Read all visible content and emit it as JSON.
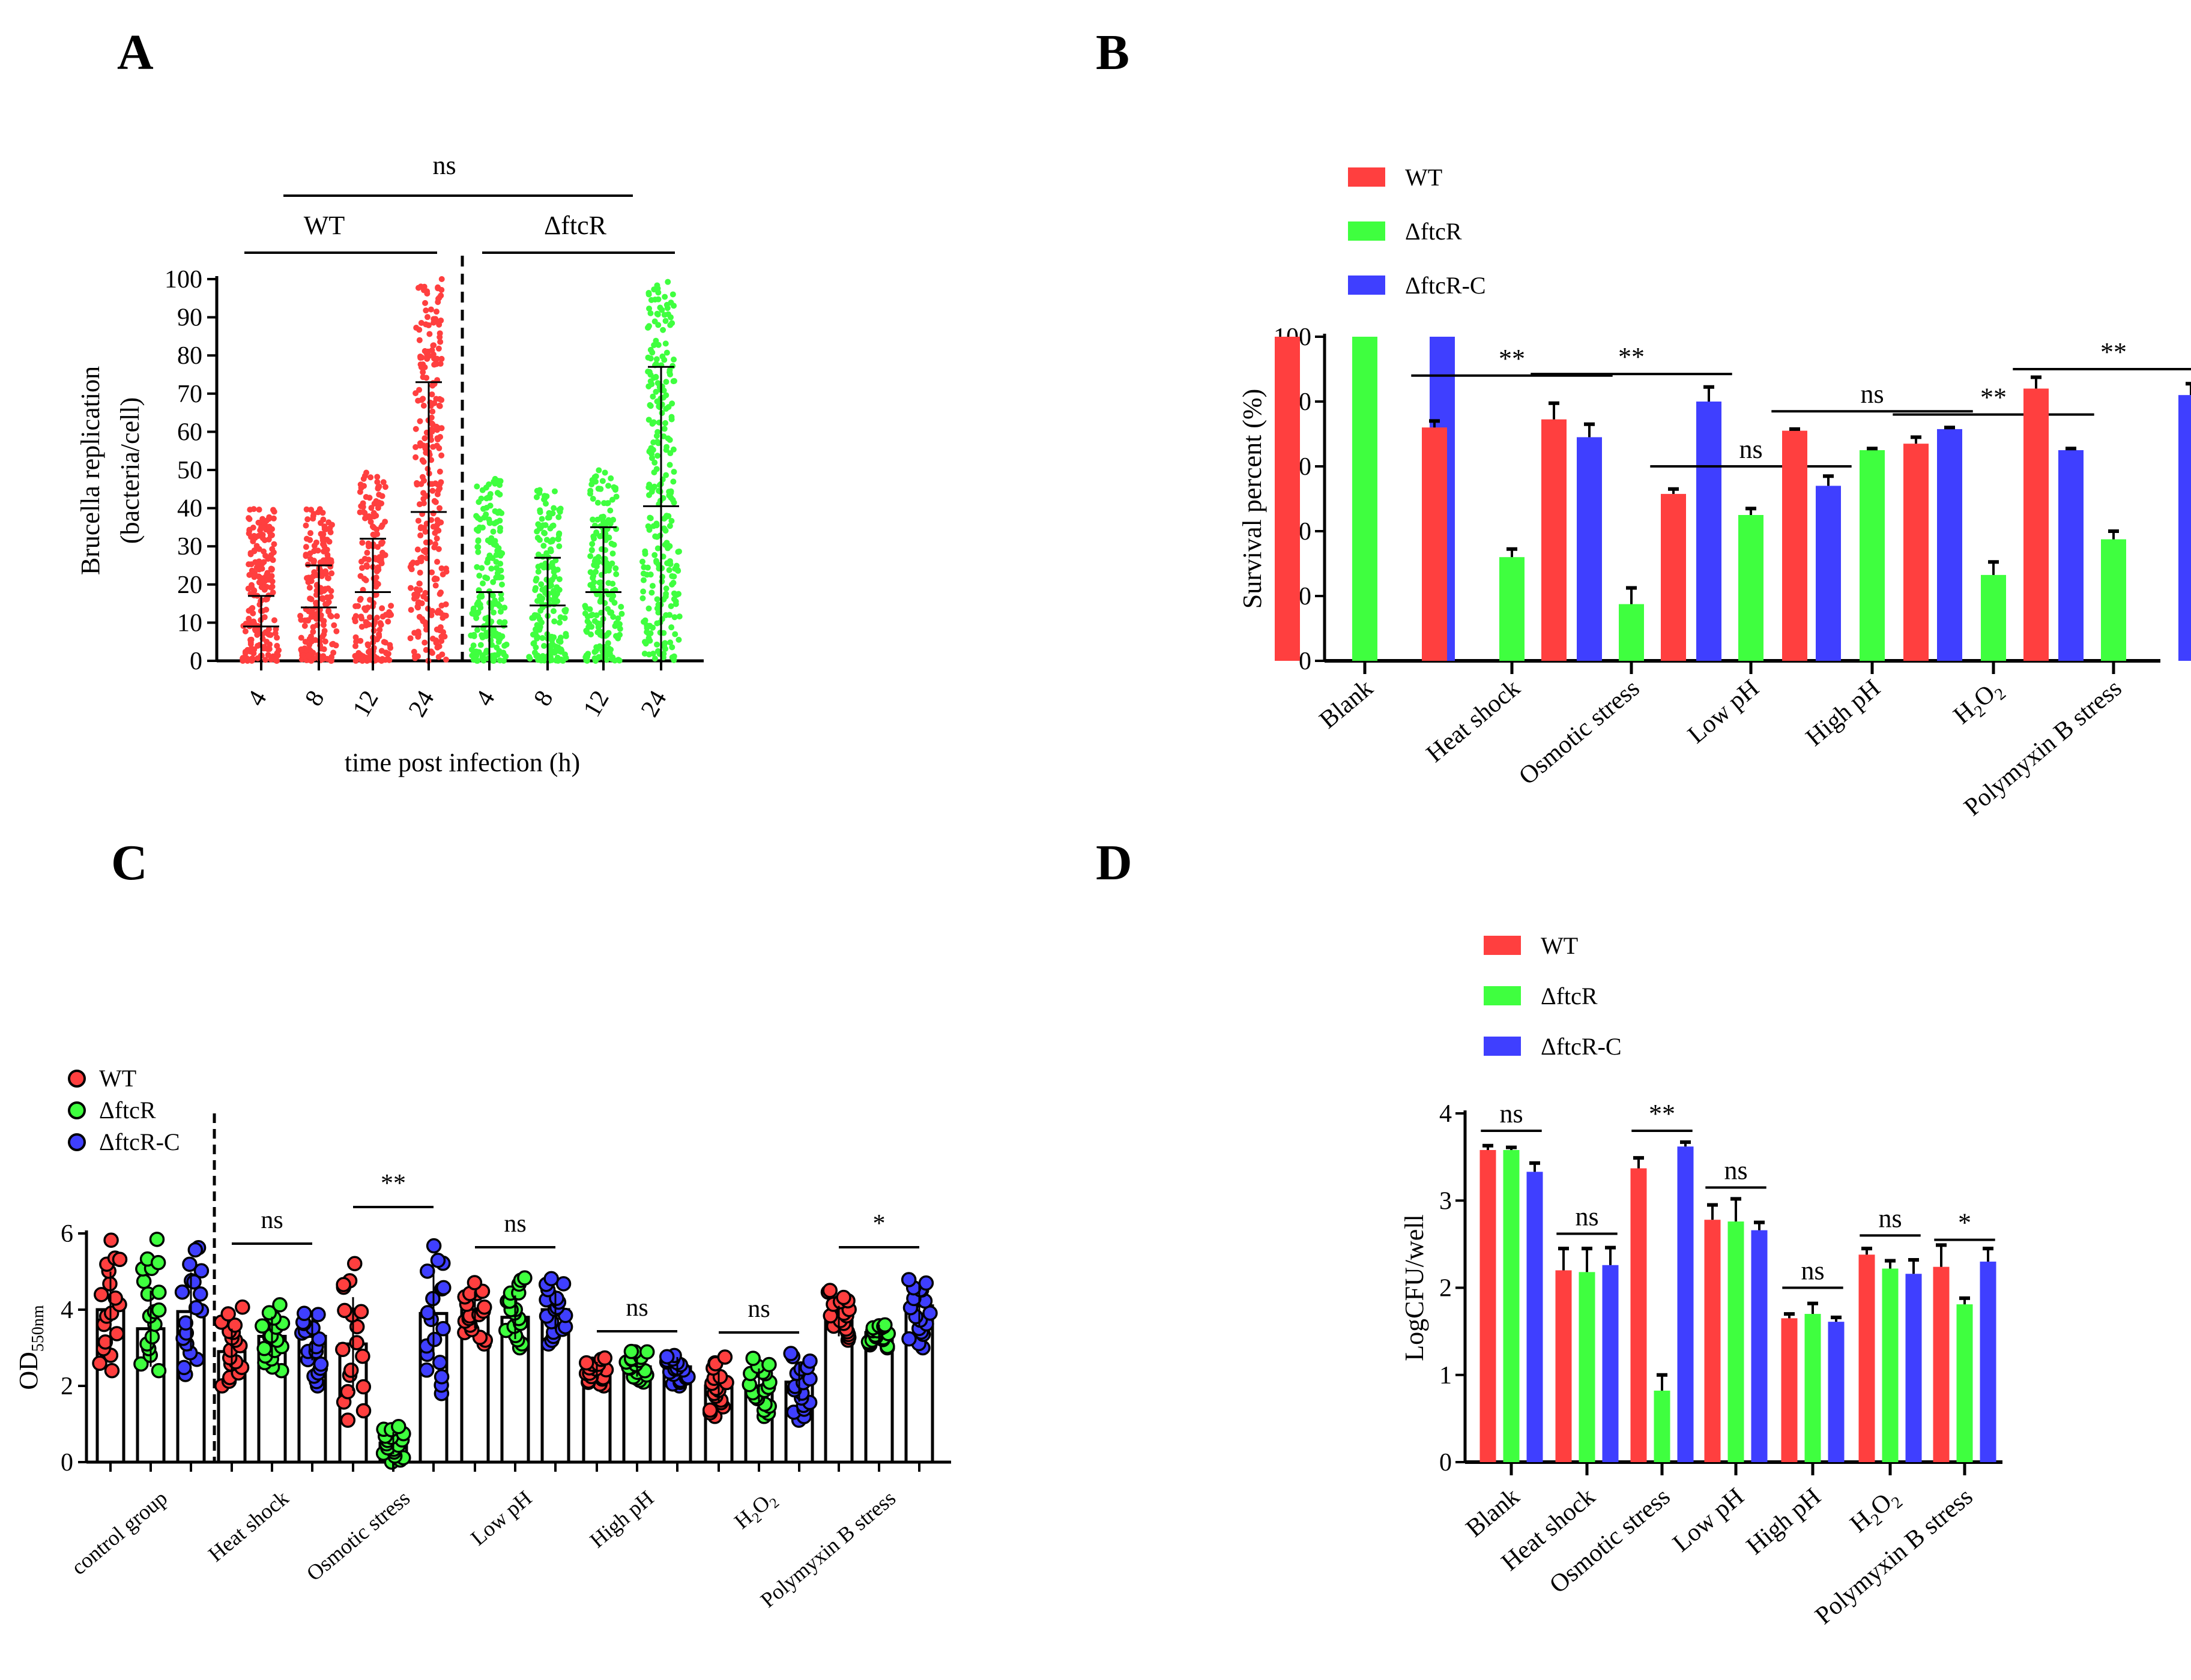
{
  "colors": {
    "wt": "#ff3f3f",
    "ftcR": "#3fff3f",
    "ftcRC": "#3f3fff"
  },
  "chart_data": [
    {
      "panel": "A",
      "type": "scatter",
      "ylabel": [
        "Brucella replication",
        "(bacteria/cell)"
      ],
      "xlabel": "time post infection (h)",
      "ylim": [
        0,
        100
      ],
      "yticks": [
        0,
        10,
        20,
        30,
        40,
        50,
        60,
        70,
        80,
        90,
        100
      ],
      "groups": [
        {
          "name": "WT",
          "color": "#ff3f3f",
          "categories": [
            "4",
            "8",
            "12",
            "24"
          ],
          "max": [
            40,
            40,
            50,
            100
          ],
          "mean": [
            9,
            14,
            18,
            39
          ],
          "sd_upper": [
            17,
            25,
            32,
            73
          ]
        },
        {
          "name": "ΔftcR",
          "color": "#3fff3f",
          "categories": [
            "4",
            "8",
            "12",
            "24"
          ],
          "max": [
            48,
            45,
            50,
            100
          ],
          "mean": [
            9,
            14.5,
            18,
            40.5
          ],
          "sd_upper": [
            18,
            27,
            35,
            77
          ]
        }
      ],
      "annotation": "ns"
    },
    {
      "panel": "B",
      "type": "bar",
      "ylabel": "Survival percent (%)",
      "ylim": [
        0,
        100
      ],
      "yticks": [
        0,
        20,
        40,
        60,
        80,
        100
      ],
      "categories": [
        "Blank",
        "Heat shock",
        "Osmotic stress",
        "Low pH",
        "High pH",
        "H2O2",
        "Polymyxin B stress"
      ],
      "series": [
        {
          "name": "WT",
          "color": "#ff3f3f",
          "values": [
            100,
            72,
            74.5,
            51.5,
            71,
            67,
            84
          ],
          "errors": [
            0,
            2,
            5,
            1.5,
            0.5,
            2,
            3.5
          ]
        },
        {
          "name": "ΔftcR",
          "color": "#3fff3f",
          "values": [
            100,
            32,
            17.5,
            45,
            65,
            26.5,
            37.5
          ],
          "errors": [
            0,
            2.5,
            5,
            2,
            0.5,
            4,
            2.5
          ]
        },
        {
          "name": "ΔftcR-C",
          "color": "#3f3fff",
          "values": [
            100,
            69,
            80,
            54,
            71.5,
            65,
            82
          ],
          "errors": [
            0,
            4,
            4.5,
            3,
            0.5,
            0.5,
            3.5
          ]
        }
      ],
      "significance": [
        null,
        "**",
        "**",
        "ns",
        "ns",
        "**",
        "**"
      ],
      "sig_level": [
        null,
        88,
        88.5,
        60,
        77,
        76,
        90
      ],
      "legend": "top-left"
    },
    {
      "panel": "C",
      "type": "bar",
      "ylabel": "OD",
      "ylabel_sub": "550nm",
      "ylim": [
        0,
        6
      ],
      "yticks": [
        0,
        2,
        4,
        6
      ],
      "categories": [
        "control group",
        "Heat shock",
        "Osmotic stress",
        "Low pH",
        "High pH",
        "H2O2",
        "Polymyxin B stress"
      ],
      "series": [
        {
          "name": "WT",
          "color": "#ff3f3f",
          "values": [
            4.0,
            2.9,
            3.1,
            4.0,
            2.4,
            2.0,
            3.7
          ],
          "min": [
            2.4,
            2.0,
            1.1,
            3.1,
            2.0,
            1.2,
            3.2
          ],
          "max": [
            5.9,
            4.1,
            5.4,
            4.8,
            2.8,
            2.8,
            4.6
          ]
        },
        {
          "name": "ΔftcR",
          "color": "#3fff3f",
          "values": [
            3.5,
            3.3,
            0.5,
            3.8,
            2.5,
            2.0,
            3.4
          ],
          "min": [
            2.4,
            2.4,
            0.0,
            3.0,
            2.1,
            1.2,
            3.0
          ],
          "max": [
            5.9,
            4.2,
            1.0,
            5.0,
            3.0,
            2.8,
            3.7
          ]
        },
        {
          "name": "ΔftcR-C",
          "color": "#3f3fff",
          "values": [
            3.95,
            3.3,
            3.9,
            4.0,
            2.5,
            2.1,
            4.1
          ],
          "min": [
            2.3,
            2.0,
            1.8,
            3.1,
            2.0,
            1.1,
            3.0
          ],
          "max": [
            5.9,
            4.2,
            5.8,
            4.9,
            2.9,
            2.9,
            5.0
          ]
        }
      ],
      "significance": [
        null,
        "ns",
        "**",
        "ns",
        "ns",
        "ns",
        "*"
      ],
      "legend": "top-left"
    },
    {
      "panel": "D",
      "type": "bar",
      "ylabel": "LogCFU/well",
      "ylim": [
        0,
        4
      ],
      "yticks": [
        0,
        1,
        2,
        3,
        4
      ],
      "categories": [
        "Blank",
        "Heat shock",
        "Osmotic stress",
        "Low pH",
        "High pH",
        "H2O2",
        "Polymyxin B stress"
      ],
      "series": [
        {
          "name": "WT",
          "color": "#ff3f3f",
          "values": [
            3.58,
            2.2,
            3.37,
            2.78,
            1.65,
            2.38,
            2.24
          ],
          "errors": [
            0.05,
            0.25,
            0.12,
            0.17,
            0.05,
            0.07,
            0.25
          ]
        },
        {
          "name": "ΔftcR",
          "color": "#3fff3f",
          "values": [
            3.58,
            2.18,
            0.82,
            2.76,
            1.7,
            2.22,
            1.81
          ],
          "errors": [
            0.03,
            0.27,
            0.18,
            0.26,
            0.12,
            0.09,
            0.07
          ]
        },
        {
          "name": "ΔftcR-C",
          "color": "#3f3fff",
          "values": [
            3.33,
            2.26,
            3.62,
            2.66,
            1.61,
            2.16,
            2.3
          ],
          "errors": [
            0.1,
            0.2,
            0.05,
            0.09,
            0.05,
            0.16,
            0.15
          ]
        }
      ],
      "significance": [
        "ns",
        "ns",
        "**",
        "ns",
        "ns",
        "ns",
        "*"
      ],
      "sig_level": [
        3.8,
        2.62,
        3.8,
        3.15,
        2.0,
        2.6,
        2.55
      ],
      "legend": "top-left"
    }
  ]
}
